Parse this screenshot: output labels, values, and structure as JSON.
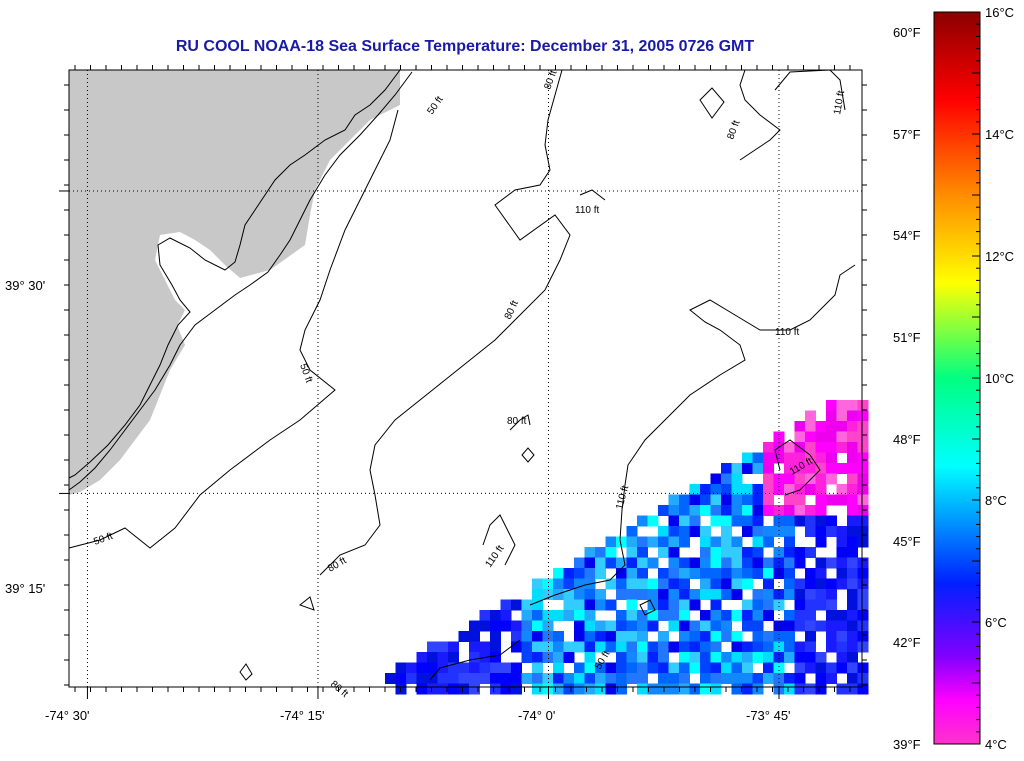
{
  "title": "RU COOL  NOAA-18  Sea Surface Temperature:  December 31, 2005 0726 GMT",
  "map": {
    "lon_ticks": [
      {
        "value": -74.5,
        "label": "-74° 30'"
      },
      {
        "value": -74.25,
        "label": "-74° 15'"
      },
      {
        "value": -74.0,
        "label": "-74° 0'"
      },
      {
        "value": -73.75,
        "label": "-73° 45'"
      }
    ],
    "lat_ticks": [
      {
        "value": 39.5,
        "label": "39° 30'"
      },
      {
        "value": 39.25,
        "label": "39° 15'"
      }
    ],
    "lon_range": [
      -74.52,
      -73.66
    ],
    "lat_range": [
      39.09,
      39.6
    ],
    "land_color": "#c8c8c8",
    "grid": true
  },
  "contours": [
    {
      "label": "50 ft"
    },
    {
      "label": "80 ft"
    },
    {
      "label": "110 ft"
    },
    {
      "label": "50 ft"
    },
    {
      "label": "80 ft"
    },
    {
      "label": "110 ft"
    },
    {
      "label": "80 ft"
    },
    {
      "label": "50 ft"
    },
    {
      "label": "80 ft"
    },
    {
      "label": "110 ft"
    },
    {
      "label": "110 ft"
    },
    {
      "label": "110 ft"
    },
    {
      "label": "110 ft"
    },
    {
      "label": "50 ft"
    },
    {
      "label": "80 ft"
    },
    {
      "label": "80 ft"
    }
  ],
  "colorbar": {
    "c_labels": [
      "16°C",
      "14°C",
      "12°C",
      "10°C",
      "8°C",
      "6°C",
      "4°C"
    ],
    "f_labels": [
      "60°F",
      "57°F",
      "54°F",
      "51°F",
      "48°F",
      "45°F",
      "42°F",
      "39°F"
    ],
    "stops": [
      "#8b0000",
      "#ff0000",
      "#ff8c00",
      "#ffff00",
      "#00ff80",
      "#00ffff",
      "#0000ff",
      "#8000ff",
      "#ff00ff",
      "#ff33cc"
    ]
  }
}
